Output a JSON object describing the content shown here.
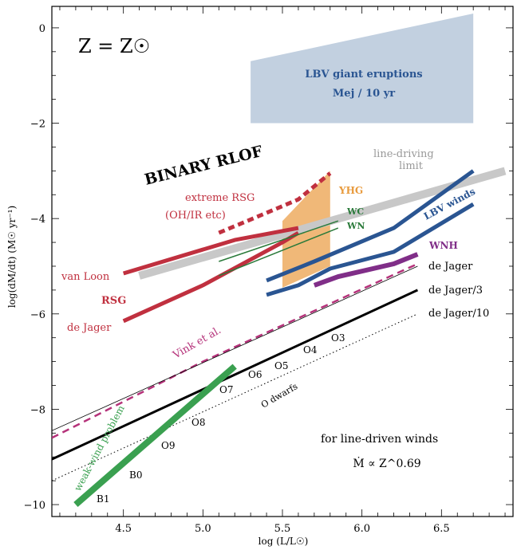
{
  "chart_data": {
    "type": "line",
    "title": "",
    "xlabel": "log (L/L☉)",
    "ylabel": "log(dM/dt) (M☉ yr⁻¹)",
    "xlim": [
      4.05,
      6.95
    ],
    "ylim": [
      -10.25,
      0.45
    ],
    "xticks": [
      4.5,
      5.0,
      5.5,
      6.0,
      6.5
    ],
    "xtick_labels": [
      "4.5",
      "5.0",
      "5.5",
      "6.0",
      "6.5"
    ],
    "yticks": [
      0,
      -2,
      -4,
      -6,
      -8,
      -10
    ],
    "ytick_labels": [
      "0",
      "−2",
      "−4",
      "−6",
      "−8",
      "−10"
    ],
    "annotations": {
      "metallicity": "Z = Z☉",
      "lbv_title": "LBV giant eruptions",
      "lbv_rate": "Mej / 10 yr",
      "binary": "BINARY RLOF",
      "extreme_rsg": "extreme RSG",
      "ohir": "(OH/IR etc)",
      "line_driving": "line-driving",
      "limit": "limit",
      "yhg": "YHG",
      "wc": "WC",
      "wn": "WN",
      "lbv_winds": "LBV winds",
      "wnh": "WNH",
      "van_loon": "van Loon",
      "rsg": "RSG",
      "de_jager_rsg": "de Jager",
      "de_jager": "de Jager",
      "de_jager_3": "de Jager/3",
      "de_jager_10": "de Jager/10",
      "vink": "Vink et al.",
      "weak_wind": "weak-wind problem",
      "o_dwarfs": "O dwarfs",
      "line_driven": "for line-driven winds",
      "scaling": "Ṁ ∝ Z^0.69"
    },
    "spectral_types": [
      "O3",
      "O4",
      "O5",
      "O6",
      "O7",
      "O8",
      "O9",
      "B0",
      "B1"
    ],
    "series": [
      {
        "name": "LBV giant eruptions",
        "kind": "polygon",
        "color": "#c2d0e0",
        "x": [
          5.3,
          6.7,
          6.7,
          5.3
        ],
        "y": [
          -0.7,
          0.3,
          -2.0,
          -2.0
        ]
      },
      {
        "name": "YHG",
        "kind": "polygon",
        "color": "#f0b878",
        "x": [
          5.5,
          5.8,
          5.8,
          5.5
        ],
        "y": [
          -4.05,
          -3.0,
          -5.0,
          -5.45
        ]
      },
      {
        "name": "line-driving limit",
        "kind": "line",
        "color": "#c8c8c8",
        "width": 10,
        "x": [
          4.6,
          6.9
        ],
        "y": [
          -5.2,
          -3.0
        ]
      },
      {
        "name": "extreme RSG",
        "kind": "line",
        "color": "#c0303f",
        "width": 5,
        "dash": "8,5",
        "x": [
          5.1,
          5.35,
          5.6,
          5.8
        ],
        "y": [
          -4.3,
          -3.95,
          -3.6,
          -3.05
        ]
      },
      {
        "name": "van Loon",
        "kind": "line",
        "color": "#c0303f",
        "width": 5,
        "x": [
          4.5,
          5.1,
          5.2,
          5.6
        ],
        "y": [
          -5.15,
          -4.55,
          -4.45,
          -4.2
        ]
      },
      {
        "name": "RSG de Jager",
        "kind": "line",
        "color": "#c0303f",
        "width": 5,
        "x": [
          4.5,
          5.0,
          5.5,
          5.6
        ],
        "y": [
          -6.15,
          -5.4,
          -4.5,
          -4.3
        ]
      },
      {
        "name": "WC",
        "kind": "line",
        "color": "#2a7a3a",
        "width": 1.5,
        "x": [
          5.1,
          5.85
        ],
        "y": [
          -4.9,
          -4.05
        ]
      },
      {
        "name": "WN",
        "kind": "line",
        "color": "#2a7a3a",
        "width": 1.5,
        "x": [
          5.1,
          5.85
        ],
        "y": [
          -5.2,
          -4.2
        ]
      },
      {
        "name": "LBV winds upper",
        "kind": "line",
        "color": "#2a5592",
        "width": 5,
        "x": [
          5.4,
          5.7,
          6.2,
          6.7
        ],
        "y": [
          -5.3,
          -4.9,
          -4.2,
          -3.0
        ]
      },
      {
        "name": "LBV winds lower",
        "kind": "line",
        "color": "#2a5592",
        "width": 5,
        "x": [
          5.4,
          5.6,
          5.8,
          6.2,
          6.7
        ],
        "y": [
          -5.6,
          -5.4,
          -5.05,
          -4.7,
          -3.7
        ]
      },
      {
        "name": "WNH",
        "kind": "line",
        "color": "#802e88",
        "width": 6,
        "x": [
          5.7,
          5.85,
          6.2,
          6.35
        ],
        "y": [
          -5.4,
          -5.22,
          -4.95,
          -4.75
        ]
      },
      {
        "name": "Vink et al.",
        "kind": "line",
        "color": "#b5327a",
        "width": 2.5,
        "dash": "9,6",
        "x": [
          4.05,
          5.0,
          6.35
        ],
        "y": [
          -8.6,
          -7.0,
          -4.95
        ]
      },
      {
        "name": "de Jager",
        "kind": "line",
        "color": "#000000",
        "width": 0.8,
        "x": [
          4.05,
          6.35
        ],
        "y": [
          -8.45,
          -5.0
        ]
      },
      {
        "name": "de Jager/3",
        "kind": "line",
        "color": "#000000",
        "width": 3,
        "x": [
          4.05,
          6.35
        ],
        "y": [
          -9.05,
          -5.5
        ]
      },
      {
        "name": "de Jager/10",
        "kind": "line",
        "color": "#000000",
        "width": 1,
        "dash": "1.5,3",
        "x": [
          4.05,
          6.35
        ],
        "y": [
          -9.5,
          -6.0
        ]
      },
      {
        "name": "weak-wind problem",
        "kind": "line",
        "color": "#3aa050",
        "width": 8,
        "x": [
          4.2,
          5.2
        ],
        "y": [
          -10.0,
          -7.1
        ]
      }
    ]
  }
}
